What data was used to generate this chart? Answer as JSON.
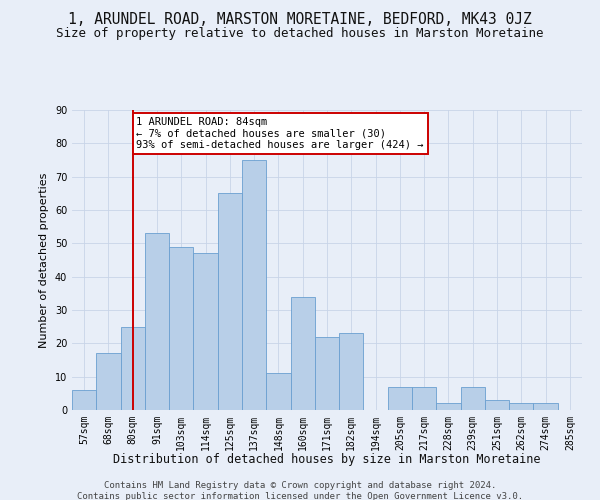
{
  "title": "1, ARUNDEL ROAD, MARSTON MORETAINE, BEDFORD, MK43 0JZ",
  "subtitle": "Size of property relative to detached houses in Marston Moretaine",
  "xlabel": "Distribution of detached houses by size in Marston Moretaine",
  "ylabel": "Number of detached properties",
  "categories": [
    "57sqm",
    "68sqm",
    "80sqm",
    "91sqm",
    "103sqm",
    "114sqm",
    "125sqm",
    "137sqm",
    "148sqm",
    "160sqm",
    "171sqm",
    "182sqm",
    "194sqm",
    "205sqm",
    "217sqm",
    "228sqm",
    "239sqm",
    "251sqm",
    "262sqm",
    "274sqm",
    "285sqm"
  ],
  "bar_heights": [
    6,
    17,
    25,
    53,
    49,
    47,
    65,
    75,
    11,
    34,
    22,
    23,
    0,
    7,
    7,
    2,
    7,
    3,
    2,
    2,
    0
  ],
  "bar_color": "#b8cfe8",
  "bar_edge_color": "#6a9fd0",
  "vline_x": 2,
  "vline_color": "#cc0000",
  "annotation_text": "1 ARUNDEL ROAD: 84sqm\n← 7% of detached houses are smaller (30)\n93% of semi-detached houses are larger (424) →",
  "annotation_box_color": "#ffffff",
  "annotation_box_edge": "#cc0000",
  "ylim": [
    0,
    90
  ],
  "yticks": [
    0,
    10,
    20,
    30,
    40,
    50,
    60,
    70,
    80,
    90
  ],
  "grid_color": "#c8d4e8",
  "footer1": "Contains HM Land Registry data © Crown copyright and database right 2024.",
  "footer2": "Contains public sector information licensed under the Open Government Licence v3.0.",
  "title_fontsize": 10.5,
  "subtitle_fontsize": 9,
  "xlabel_fontsize": 8.5,
  "ylabel_fontsize": 8,
  "tick_fontsize": 7,
  "annotation_fontsize": 7.5,
  "footer_fontsize": 6.5,
  "bg_color": "#e8eef8"
}
